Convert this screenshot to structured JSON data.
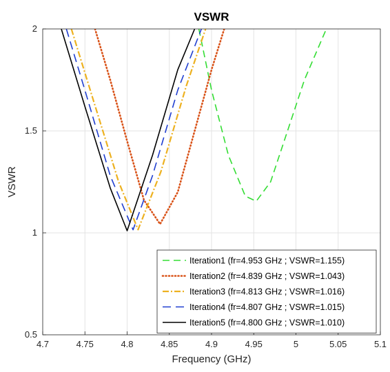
{
  "chart_data": {
    "type": "line",
    "title": "VSWR",
    "xlabel": "Frequency (GHz)",
    "ylabel": "VSWR",
    "xlim": [
      4.7,
      5.1
    ],
    "ylim": [
      0.5,
      2
    ],
    "xticks": [
      "4.7",
      "4.75",
      "4.8",
      "4.85",
      "4.9",
      "4.95",
      "5",
      "5.05",
      "5.1"
    ],
    "yticks": [
      "0.5",
      "1",
      "1.5",
      "2"
    ],
    "grid": true,
    "legend_position": "bottom-right",
    "series": [
      {
        "name": "Iteration1 (fr=4.953 GHz ; VSWR=1.155)",
        "color": "#33dd33",
        "dash": "dashed",
        "x": [
          4.885,
          4.9,
          4.92,
          4.94,
          4.953,
          4.97,
          4.99,
          5.01,
          5.036
        ],
        "y": [
          2.0,
          1.7,
          1.38,
          1.18,
          1.155,
          1.25,
          1.5,
          1.75,
          2.0
        ]
      },
      {
        "name": "Iteration2 (fr=4.839 GHz ; VSWR=1.043)",
        "color": "#d95319",
        "dash": "dotted",
        "x": [
          4.762,
          4.78,
          4.8,
          4.82,
          4.839,
          4.86,
          4.88,
          4.9,
          4.915
        ],
        "y": [
          2.0,
          1.75,
          1.45,
          1.16,
          1.043,
          1.2,
          1.5,
          1.8,
          2.0
        ]
      },
      {
        "name": "Iteration3 (fr=4.813 GHz ; VSWR=1.016)",
        "color": "#edb120",
        "dash": "dashdot",
        "x": [
          4.734,
          4.76,
          4.79,
          4.813,
          4.84,
          4.87,
          4.893
        ],
        "y": [
          2.0,
          1.65,
          1.25,
          1.016,
          1.3,
          1.72,
          2.0
        ]
      },
      {
        "name": "Iteration4 (fr=4.807 GHz ; VSWR=1.015)",
        "color": "#1f3ed0",
        "dash": "longdash",
        "x": [
          4.728,
          4.75,
          4.78,
          4.807,
          4.83,
          4.86,
          4.888
        ],
        "y": [
          2.0,
          1.7,
          1.28,
          1.015,
          1.28,
          1.7,
          2.0
        ]
      },
      {
        "name": "Iteration5 (fr=4.800 GHz ; VSWR=1.010)",
        "color": "#000000",
        "dash": "solid",
        "x": [
          4.722,
          4.75,
          4.78,
          4.8,
          4.83,
          4.86,
          4.88
        ],
        "y": [
          2.0,
          1.62,
          1.22,
          1.01,
          1.38,
          1.8,
          2.0
        ]
      }
    ]
  }
}
